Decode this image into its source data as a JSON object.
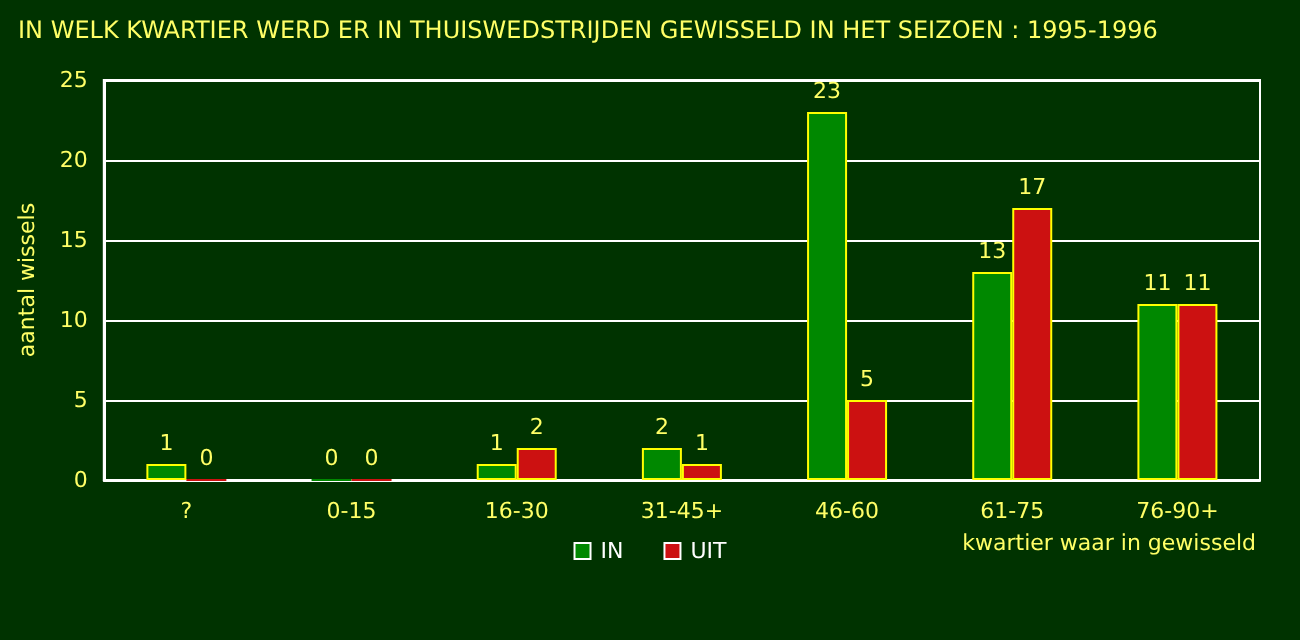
{
  "chart_data": {
    "type": "bar",
    "title": "IN WELK KWARTIER WERD ER IN THUISWEDSTRIJDEN GEWISSELD IN HET SEIZOEN : 1995-1996",
    "xlabel": "kwartier waar in gewisseld",
    "ylabel": "aantal wissels",
    "categories": [
      "?",
      "0-15",
      "16-30",
      "31-45+",
      "46-60",
      "61-75",
      "76-90+"
    ],
    "series": [
      {
        "name": "IN",
        "color": "#008800",
        "values": [
          1,
          0,
          1,
          2,
          23,
          13,
          11
        ]
      },
      {
        "name": "UIT",
        "color": "#cc1111",
        "values": [
          0,
          0,
          2,
          1,
          5,
          17,
          11
        ]
      }
    ],
    "ylim": [
      0,
      25
    ],
    "yticks": [
      0,
      5,
      10,
      15,
      20,
      25
    ],
    "grid": "y",
    "legend": "bottom",
    "data_labels": true
  }
}
